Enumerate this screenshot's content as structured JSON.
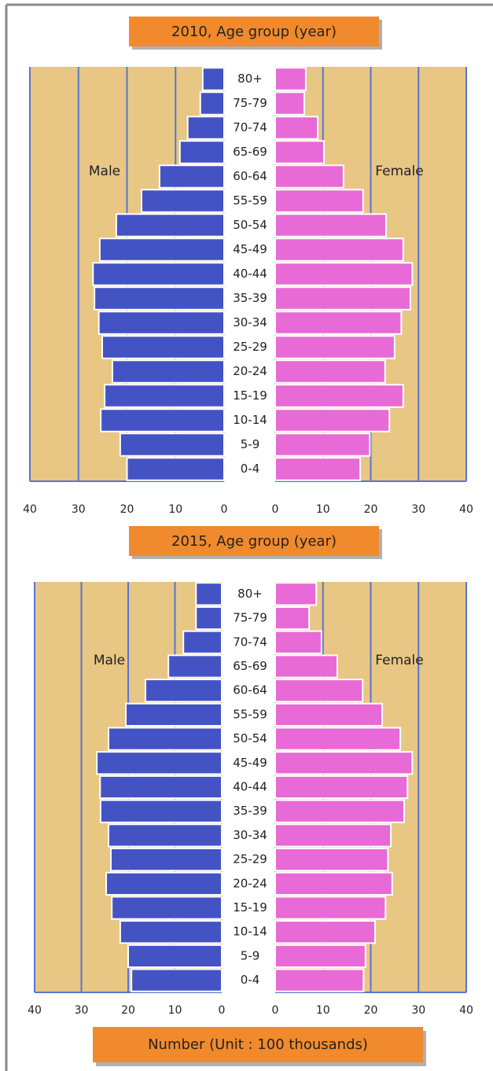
{
  "chart_data": [
    {
      "type": "pyramid",
      "title": "2010, Age group (year)",
      "categories": [
        "80+",
        "75-79",
        "70-74",
        "65-69",
        "60-64",
        "55-59",
        "50-54",
        "45-49",
        "40-44",
        "35-39",
        "30-34",
        "25-29",
        "20-24",
        "15-19",
        "10-14",
        "5-9",
        "0-4"
      ],
      "series": [
        {
          "name": "Male",
          "color": "#4453c4",
          "values": [
            4.4,
            4.9,
            7.5,
            9.1,
            13.3,
            17,
            22.2,
            25.6,
            27,
            26.7,
            25.8,
            25.1,
            23,
            24.6,
            25.4,
            21.4,
            20
          ]
        },
        {
          "name": "Female",
          "color": "#e86ad6",
          "values": [
            6.4,
            6.1,
            8.9,
            10.2,
            14.3,
            18.4,
            23.2,
            26.8,
            28.7,
            28.3,
            26.4,
            25,
            23,
            26.8,
            23.9,
            19.8,
            17.8
          ]
        }
      ],
      "xlim": [
        0,
        40
      ],
      "xticks": [
        0,
        10,
        20,
        30,
        40
      ],
      "grid": true
    },
    {
      "type": "pyramid",
      "title": "2015, Age group (year)",
      "categories": [
        "80+",
        "75-79",
        "70-74",
        "65-69",
        "60-64",
        "55-59",
        "50-54",
        "45-49",
        "40-44",
        "35-39",
        "30-34",
        "25-29",
        "20-24",
        "15-19",
        "10-14",
        "5-9",
        "0-4"
      ],
      "series": [
        {
          "name": "Male",
          "color": "#4453c4",
          "values": [
            5.5,
            5.5,
            8.2,
            11.4,
            16.3,
            20.5,
            24.2,
            26.7,
            26,
            25.9,
            24.2,
            23.7,
            24.7,
            23.5,
            21.7,
            20,
            19.3
          ]
        },
        {
          "name": "Female",
          "color": "#e86ad6",
          "values": [
            8.6,
            7.1,
            9.7,
            13,
            18.3,
            22.4,
            26.2,
            28.7,
            27.7,
            27,
            24.2,
            23.6,
            24.5,
            23.1,
            20.9,
            18.9,
            18.5
          ]
        }
      ],
      "xlim": [
        0,
        40
      ],
      "xticks": [
        0,
        10,
        20,
        30,
        40
      ],
      "grid": true,
      "x_label": "Number (Unit : 100 thousands)"
    }
  ]
}
